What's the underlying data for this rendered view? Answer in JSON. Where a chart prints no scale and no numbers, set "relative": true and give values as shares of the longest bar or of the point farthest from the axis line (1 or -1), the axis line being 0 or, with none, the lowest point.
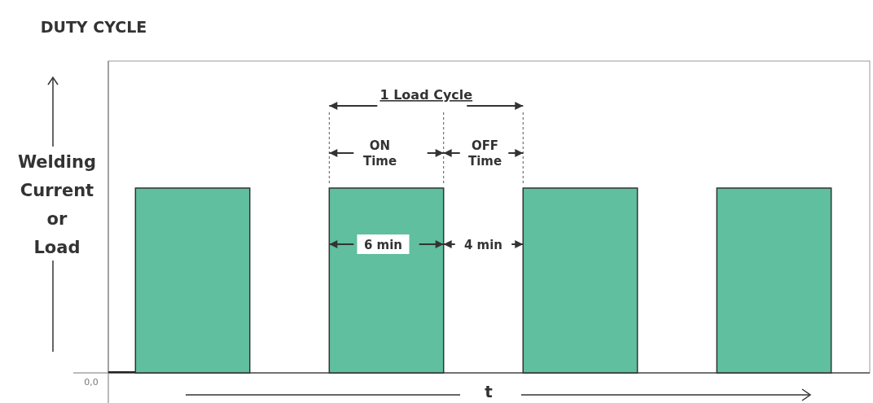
{
  "chart_data": {
    "type": "bar",
    "title": "DUTY CYCLE",
    "ylabel": "Welding Current or Load",
    "xlabel": "t",
    "categories": [
      null,
      null,
      null,
      null
    ],
    "values": [
      1,
      1,
      1,
      1
    ],
    "relative": true,
    "color": "#5fbf9f",
    "annotations": [
      "1 Load Cycle",
      "ON Time",
      "OFF Time",
      "6 min",
      "4 min",
      "0,0"
    ]
  }
}
